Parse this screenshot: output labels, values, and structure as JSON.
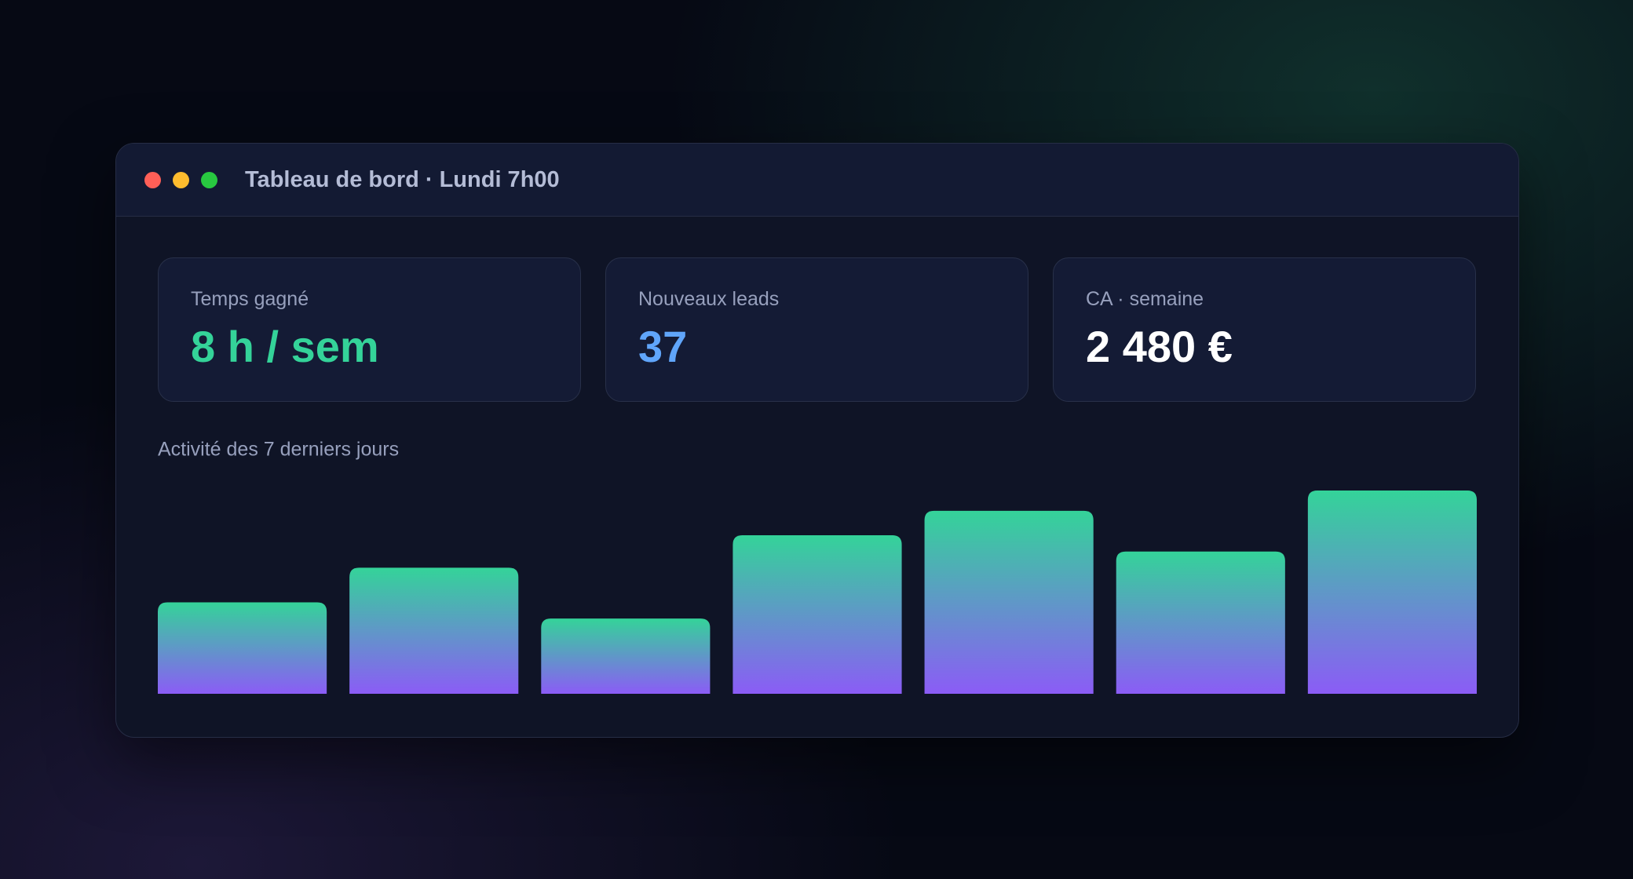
{
  "window": {
    "title": "Tableau de bord · Lundi 7h00"
  },
  "stats": [
    {
      "label": "Temps gagné",
      "value": "8 h / sem",
      "color": "#34d399"
    },
    {
      "label": "Nouveaux leads",
      "value": "37",
      "color": "#60a5fa"
    },
    {
      "label": "CA · semaine",
      "value": "2 480 €",
      "color": "#ffffff"
    }
  ],
  "chart_data": {
    "type": "bar",
    "title": "Activité des 7 derniers jours",
    "values": [
      45,
      62,
      37,
      78,
      90,
      70,
      100
    ],
    "ylim": [
      0,
      100
    ],
    "color_top": "#34d399",
    "color_bottom": "#8b5cf6"
  }
}
